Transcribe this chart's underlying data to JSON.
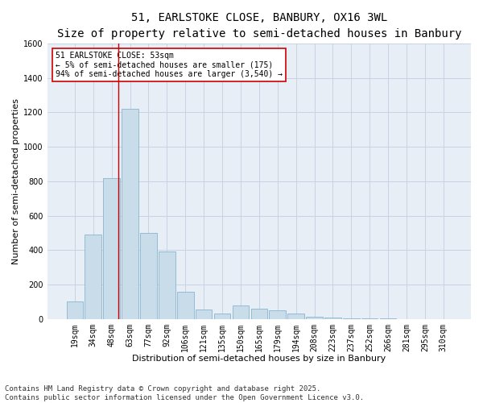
{
  "title1": "51, EARLSTOKE CLOSE, BANBURY, OX16 3WL",
  "title2": "Size of property relative to semi-detached houses in Banbury",
  "xlabel": "Distribution of semi-detached houses by size in Banbury",
  "ylabel": "Number of semi-detached properties",
  "categories": [
    "19sqm",
    "34sqm",
    "48sqm",
    "63sqm",
    "77sqm",
    "92sqm",
    "106sqm",
    "121sqm",
    "135sqm",
    "150sqm",
    "165sqm",
    "179sqm",
    "194sqm",
    "208sqm",
    "223sqm",
    "237sqm",
    "252sqm",
    "266sqm",
    "281sqm",
    "295sqm",
    "310sqm"
  ],
  "values": [
    100,
    490,
    820,
    1220,
    500,
    390,
    160,
    55,
    30,
    80,
    60,
    50,
    30,
    15,
    10,
    5,
    3,
    2,
    1,
    1,
    0
  ],
  "bar_color": "#c9dcea",
  "bar_edge_color": "#8ab4d0",
  "grid_color": "#c8d4e4",
  "background_color": "#e8eef6",
  "annotation_text": "51 EARLSTOKE CLOSE: 53sqm\n← 5% of semi-detached houses are smaller (175)\n94% of semi-detached houses are larger (3,540) →",
  "vline_x": 2.35,
  "vline_color": "#cc0000",
  "annotation_box_facecolor": "#ffffff",
  "annotation_box_edgecolor": "#cc0000",
  "ylim": [
    0,
    1600
  ],
  "yticks": [
    0,
    200,
    400,
    600,
    800,
    1000,
    1200,
    1400,
    1600
  ],
  "footer": "Contains HM Land Registry data © Crown copyright and database right 2025.\nContains public sector information licensed under the Open Government Licence v3.0.",
  "title_fontsize": 10,
  "subtitle_fontsize": 9,
  "axis_label_fontsize": 8,
  "tick_fontsize": 7,
  "annotation_fontsize": 7,
  "footer_fontsize": 6.5
}
